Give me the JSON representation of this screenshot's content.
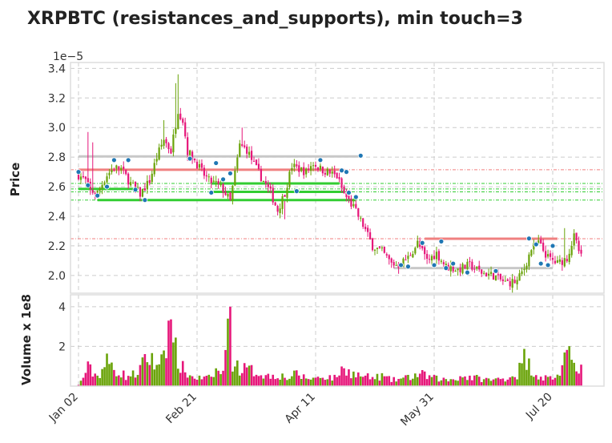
{
  "chart_data": {
    "type": "candlestick",
    "title": "XRPBTC (resistances_and_supports), min touch=3",
    "price_panel": {
      "ylabel": "Price",
      "offset_label": "1e−5",
      "ylim": [
        1.88,
        3.44
      ],
      "yticks": [
        2.0,
        2.2,
        2.4,
        2.6,
        2.8,
        3.0,
        3.2,
        3.4
      ],
      "ytick_labels": [
        "2.0",
        "2.2",
        "2.4",
        "2.6",
        "2.8",
        "3.0",
        "3.2",
        "3.4"
      ]
    },
    "volume_panel": {
      "ylabel": "Volume x 1e8",
      "ylim": [
        0,
        4.6
      ],
      "yticks": [
        2,
        4
      ],
      "ytick_labels": [
        "2",
        "4"
      ]
    },
    "x_ticks": [
      {
        "index": 0,
        "label": "Jan 02"
      },
      {
        "index": 50,
        "label": "Feb 21"
      },
      {
        "index": 100,
        "label": "Apr 11"
      },
      {
        "index": 150,
        "label": "May 31"
      },
      {
        "index": 200,
        "label": "Jul 20"
      }
    ],
    "n_days": 213,
    "grid": true,
    "colors": {
      "up": "#6aa309",
      "down": "#e6177a",
      "resistance": "#f08080",
      "support": "#32cd32",
      "neutral": "#c8c8c8",
      "touch_point": "#1f77b4"
    },
    "price_anchors": [
      [
        0,
        2.68
      ],
      [
        3,
        2.64
      ],
      [
        5,
        2.57
      ],
      [
        8,
        2.56
      ],
      [
        12,
        2.68
      ],
      [
        15,
        2.73
      ],
      [
        18,
        2.72
      ],
      [
        22,
        2.62
      ],
      [
        26,
        2.55
      ],
      [
        30,
        2.64
      ],
      [
        33,
        2.8
      ],
      [
        36,
        2.92
      ],
      [
        39,
        2.84
      ],
      [
        42,
        3.12
      ],
      [
        44,
        3.05
      ],
      [
        46,
        2.84
      ],
      [
        49,
        2.78
      ],
      [
        52,
        2.7
      ],
      [
        55,
        2.64
      ],
      [
        58,
        2.62
      ],
      [
        61,
        2.58
      ],
      [
        64,
        2.5
      ],
      [
        68,
        2.88
      ],
      [
        71,
        2.85
      ],
      [
        75,
        2.72
      ],
      [
        78,
        2.64
      ],
      [
        81,
        2.56
      ],
      [
        84,
        2.44
      ],
      [
        87,
        2.56
      ],
      [
        90,
        2.74
      ],
      [
        93,
        2.72
      ],
      [
        96,
        2.7
      ],
      [
        99,
        2.76
      ],
      [
        102,
        2.72
      ],
      [
        105,
        2.7
      ],
      [
        109,
        2.67
      ],
      [
        112,
        2.55
      ],
      [
        116,
        2.46
      ],
      [
        120,
        2.34
      ],
      [
        124,
        2.2
      ],
      [
        128,
        2.16
      ],
      [
        132,
        2.08
      ],
      [
        135,
        2.07
      ],
      [
        139,
        2.12
      ],
      [
        143,
        2.22
      ],
      [
        147,
        2.1
      ],
      [
        151,
        2.15
      ],
      [
        155,
        2.06
      ],
      [
        160,
        2.04
      ],
      [
        165,
        2.07
      ],
      [
        170,
        2.02
      ],
      [
        175,
        2.0
      ],
      [
        180,
        1.95
      ],
      [
        185,
        1.96
      ],
      [
        188,
        2.05
      ],
      [
        191,
        2.18
      ],
      [
        194,
        2.22
      ],
      [
        198,
        2.12
      ],
      [
        202,
        2.08
      ],
      [
        206,
        2.12
      ],
      [
        209,
        2.26
      ],
      [
        212,
        2.12
      ]
    ],
    "volume_anchors": [
      [
        0,
        0.05
      ],
      [
        4,
        0.9
      ],
      [
        8,
        0.5
      ],
      [
        12,
        1.2
      ],
      [
        16,
        0.8
      ],
      [
        20,
        0.5
      ],
      [
        24,
        0.6
      ],
      [
        28,
        1.2
      ],
      [
        31,
        1.5
      ],
      [
        33,
        0.8
      ],
      [
        36,
        1.7
      ],
      [
        38,
        3.2
      ],
      [
        40,
        2.2
      ],
      [
        43,
        1.0
      ],
      [
        47,
        0.5
      ],
      [
        51,
        0.4
      ],
      [
        56,
        0.4
      ],
      [
        58,
        0.8
      ],
      [
        61,
        0.6
      ],
      [
        63,
        3.8
      ],
      [
        65,
        1.3
      ],
      [
        68,
        0.9
      ],
      [
        72,
        0.8
      ],
      [
        76,
        0.7
      ],
      [
        80,
        0.5
      ],
      [
        84,
        0.6
      ],
      [
        88,
        0.4
      ],
      [
        92,
        0.6
      ],
      [
        96,
        0.4
      ],
      [
        100,
        0.4
      ],
      [
        104,
        0.5
      ],
      [
        108,
        0.4
      ],
      [
        112,
        1.0
      ],
      [
        116,
        0.6
      ],
      [
        120,
        0.5
      ],
      [
        124,
        0.4
      ],
      [
        128,
        0.5
      ],
      [
        132,
        0.3
      ],
      [
        138,
        0.4
      ],
      [
        144,
        0.6
      ],
      [
        150,
        0.4
      ],
      [
        156,
        0.3
      ],
      [
        162,
        0.5
      ],
      [
        168,
        0.4
      ],
      [
        174,
        0.3
      ],
      [
        180,
        0.4
      ],
      [
        185,
        0.6
      ],
      [
        188,
        1.4
      ],
      [
        191,
        0.9
      ],
      [
        194,
        0.5
      ],
      [
        198,
        0.4
      ],
      [
        202,
        0.5
      ],
      [
        205,
        1.2
      ],
      [
        208,
        1.5
      ],
      [
        212,
        1.0
      ]
    ],
    "big_volume_days": [
      [
        35,
        1.6
      ],
      [
        38,
        3.3
      ],
      [
        40,
        2.2
      ],
      [
        63,
        3.4
      ],
      [
        64,
        4.0
      ],
      [
        112,
        0.9
      ]
    ],
    "spikes": [
      [
        4,
        2.97
      ],
      [
        6,
        2.9
      ],
      [
        36,
        3.05
      ],
      [
        41,
        3.3
      ],
      [
        42,
        3.36
      ],
      [
        69,
        3.0
      ],
      [
        87,
        2.38
      ],
      [
        106,
        2.72
      ],
      [
        205,
        2.32
      ]
    ],
    "horizontal_lines": [
      {
        "kind": "neutral",
        "price": 2.805,
        "from": 0,
        "to": 120
      },
      {
        "kind": "resistance",
        "price": 2.715,
        "from": 0,
        "to": 112
      },
      {
        "kind": "support",
        "price": 2.622,
        "from": 56,
        "to": 110
      },
      {
        "kind": "support",
        "price": 2.585,
        "from": 0,
        "to": 25
      },
      {
        "kind": "support",
        "price": 2.565,
        "from": 56,
        "to": 112
      },
      {
        "kind": "support",
        "price": 2.51,
        "from": 8,
        "to": 117
      },
      {
        "kind": "resistance",
        "price": 2.248,
        "from": 146,
        "to": 202
      },
      {
        "kind": "neutral",
        "price": 2.05,
        "from": 133,
        "to": 200
      }
    ],
    "reference_lines": [
      {
        "kind": "resistance",
        "price": 2.715
      },
      {
        "kind": "support",
        "price": 2.622
      },
      {
        "kind": "support",
        "price": 2.585
      },
      {
        "kind": "support",
        "price": 2.565
      },
      {
        "kind": "support",
        "price": 2.51
      },
      {
        "kind": "resistance",
        "price": 2.248
      }
    ],
    "touch_points": [
      [
        0,
        2.7
      ],
      [
        4,
        2.61
      ],
      [
        8,
        2.54
      ],
      [
        12,
        2.6
      ],
      [
        15,
        2.78
      ],
      [
        21,
        2.78
      ],
      [
        24,
        2.58
      ],
      [
        28,
        2.51
      ],
      [
        47,
        2.79
      ],
      [
        56,
        2.56
      ],
      [
        58,
        2.76
      ],
      [
        61,
        2.65
      ],
      [
        64,
        2.69
      ],
      [
        92,
        2.57
      ],
      [
        102,
        2.78
      ],
      [
        111,
        2.71
      ],
      [
        113,
        2.7
      ],
      [
        114,
        2.56
      ],
      [
        117,
        2.53
      ],
      [
        119,
        2.81
      ],
      [
        136,
        2.07
      ],
      [
        139,
        2.06
      ],
      [
        145,
        2.22
      ],
      [
        150,
        2.07
      ],
      [
        153,
        2.23
      ],
      [
        155,
        2.05
      ],
      [
        158,
        2.08
      ],
      [
        164,
        2.02
      ],
      [
        176,
        2.03
      ],
      [
        190,
        2.25
      ],
      [
        193,
        2.21
      ],
      [
        195,
        2.08
      ],
      [
        198,
        2.07
      ],
      [
        200,
        2.2
      ]
    ]
  }
}
